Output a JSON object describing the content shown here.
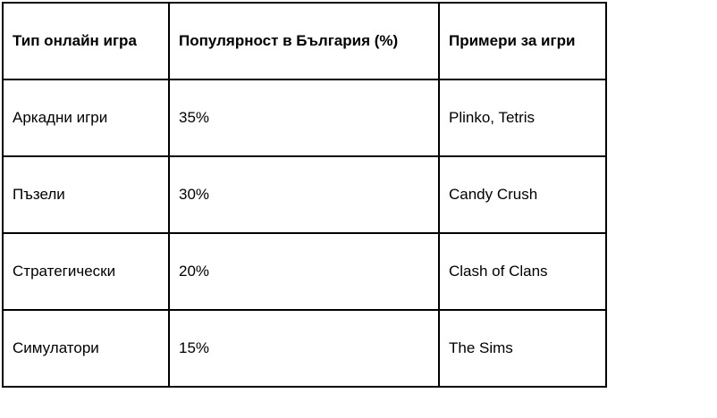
{
  "table": {
    "headers": [
      "Тип онлайн игра",
      "Популярност в България (%)",
      "Примери за игри"
    ],
    "rows": [
      {
        "type": "Аркадни игри",
        "popularity": "35%",
        "examples": "Plinko, Tetris"
      },
      {
        "type": "Пъзели",
        "popularity": "30%",
        "examples": "Candy Crush"
      },
      {
        "type": "Стратегически",
        "popularity": "20%",
        "examples": "Clash of Clans"
      },
      {
        "type": "Симулатори",
        "popularity": "15%",
        "examples": "The Sims"
      }
    ],
    "colors": {
      "border": "#000000",
      "text": "#000000",
      "background": "#ffffff"
    }
  }
}
